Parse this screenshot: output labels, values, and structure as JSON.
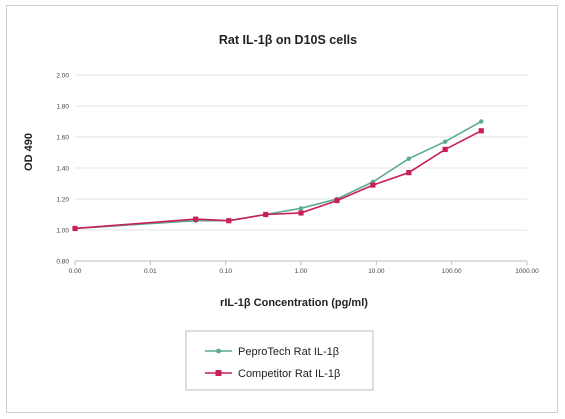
{
  "chart_data": {
    "type": "line",
    "title": "Rat IL-1β on D10S cells",
    "xlabel": "rIL-1β Concentration (pg/ml)",
    "ylabel": "OD 490",
    "x_scale": "log",
    "x_ticks": [
      0.001,
      0.01,
      0.1,
      1,
      10,
      100,
      1000
    ],
    "x_tick_labels": [
      "0.00",
      "0.01",
      "0.10",
      "1.00",
      "10.00",
      "100.00",
      "1000.00"
    ],
    "y_ticks": [
      0.8,
      1.0,
      1.2,
      1.4,
      1.6,
      1.8,
      2.0
    ],
    "y_tick_labels": [
      "0.80",
      "1.00",
      "1.20",
      "1.40",
      "1.60",
      "1.80",
      "2.00"
    ],
    "ylim": [
      0.8,
      2.0
    ],
    "xlim": [
      0.001,
      1000
    ],
    "grid": "horizontal",
    "legend_position": "bottom",
    "series": [
      {
        "name": "PeproTech Rat IL-1β",
        "color": "#5aaa95",
        "marker": "circle",
        "x": [
          0.001,
          0.04,
          0.11,
          0.34,
          1.0,
          3.0,
          9.0,
          27.0,
          82.0,
          247.0
        ],
        "y": [
          1.01,
          1.06,
          1.06,
          1.1,
          1.14,
          1.2,
          1.31,
          1.46,
          1.57,
          1.7
        ]
      },
      {
        "name": "Competitor Rat IL-1β",
        "color": "#c8205a",
        "marker": "square",
        "x": [
          0.001,
          0.04,
          0.11,
          0.34,
          1.0,
          3.0,
          9.0,
          27.0,
          82.0,
          247.0
        ],
        "y": [
          1.01,
          1.07,
          1.06,
          1.1,
          1.11,
          1.19,
          1.29,
          1.37,
          1.52,
          1.64
        ]
      }
    ]
  }
}
